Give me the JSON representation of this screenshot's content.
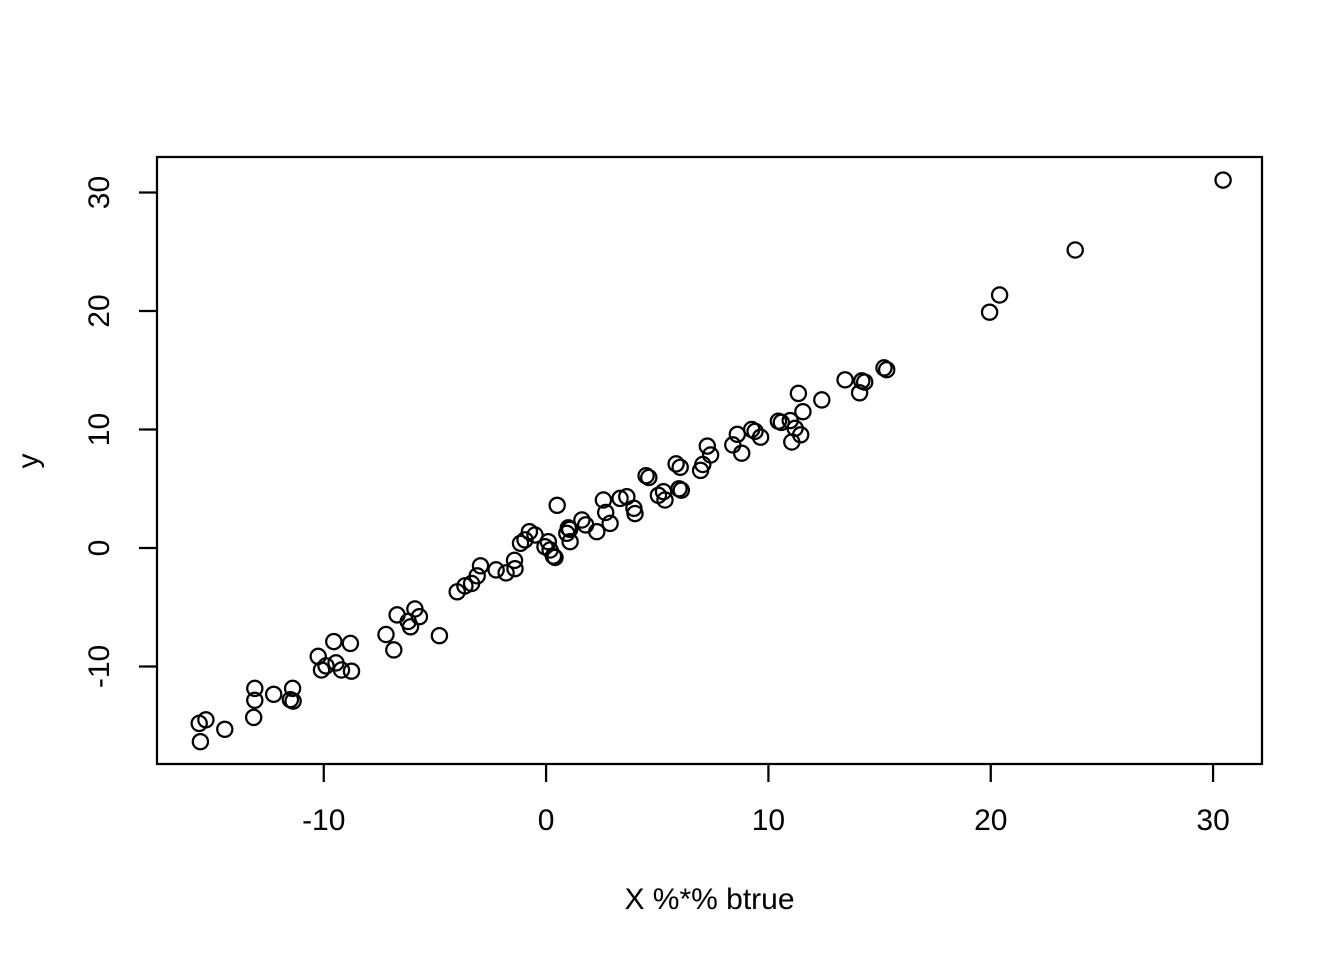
{
  "figure": {
    "background_color": "#ffffff",
    "foreground_color": "#000000"
  },
  "chart_data": {
    "type": "scatter",
    "title": "",
    "xlabel": "X %*% btrue",
    "ylabel": "y",
    "x_ticks": [
      -10,
      0,
      10,
      20,
      30
    ],
    "y_ticks": [
      -10,
      0,
      10,
      20,
      30
    ],
    "xlim": [
      -17.5,
      32.2
    ],
    "ylim": [
      -18.23,
      33.0
    ],
    "grid": "off",
    "legend": "none",
    "frame": "full-box",
    "marker": {
      "shape": "open-circle",
      "color": "#000000",
      "radius_px": 7.6,
      "stroke_px": 2.25
    },
    "n_points": 98,
    "points": [
      [
        -15.6,
        -14.8
      ],
      [
        -15.3,
        -14.5
      ],
      [
        -15.55,
        -16.35
      ],
      [
        -14.45,
        -15.3
      ],
      [
        -13.1,
        -11.85
      ],
      [
        -13.1,
        -12.85
      ],
      [
        -13.15,
        -14.3
      ],
      [
        -12.25,
        -12.35
      ],
      [
        -11.4,
        -11.85
      ],
      [
        -11.5,
        -12.8
      ],
      [
        -11.38,
        -12.92
      ],
      [
        -10.25,
        -9.15
      ],
      [
        -10.1,
        -10.3
      ],
      [
        -9.9,
        -9.95
      ],
      [
        -9.55,
        -7.9
      ],
      [
        -9.45,
        -9.7
      ],
      [
        -9.2,
        -10.3
      ],
      [
        -8.8,
        -8.05
      ],
      [
        -8.75,
        -10.4
      ],
      [
        -7.2,
        -7.3
      ],
      [
        -6.85,
        -8.6
      ],
      [
        -6.7,
        -5.65
      ],
      [
        -6.2,
        -6.2
      ],
      [
        -6.1,
        -6.65
      ],
      [
        -5.9,
        -5.15
      ],
      [
        -5.7,
        -5.8
      ],
      [
        -4.8,
        -7.4
      ],
      [
        -4.0,
        -3.7
      ],
      [
        -3.65,
        -3.2
      ],
      [
        -3.35,
        -3.0
      ],
      [
        -3.1,
        -2.35
      ],
      [
        -2.95,
        -1.5
      ],
      [
        -2.25,
        -1.85
      ],
      [
        -1.8,
        -2.1
      ],
      [
        -1.42,
        -1.05
      ],
      [
        -1.4,
        -1.75
      ],
      [
        -1.15,
        0.4
      ],
      [
        -0.95,
        0.68
      ],
      [
        -0.75,
        1.38
      ],
      [
        -0.5,
        1.1
      ],
      [
        -0.05,
        0.11
      ],
      [
        0.1,
        0.53
      ],
      [
        0.18,
        -0.17
      ],
      [
        0.33,
        -0.68
      ],
      [
        0.4,
        -0.8
      ],
      [
        0.5,
        3.6
      ],
      [
        0.93,
        1.24
      ],
      [
        1.0,
        1.7
      ],
      [
        1.06,
        1.58
      ],
      [
        1.08,
        0.53
      ],
      [
        1.61,
        2.36
      ],
      [
        1.78,
        1.95
      ],
      [
        2.28,
        1.38
      ],
      [
        2.58,
        4.05
      ],
      [
        2.68,
        3.0
      ],
      [
        2.88,
        2.08
      ],
      [
        3.33,
        4.19
      ],
      [
        3.63,
        4.33
      ],
      [
        3.95,
        3.35
      ],
      [
        4.0,
        2.9
      ],
      [
        4.5,
        6.1
      ],
      [
        4.62,
        5.95
      ],
      [
        5.05,
        4.45
      ],
      [
        5.28,
        4.75
      ],
      [
        5.35,
        4.05
      ],
      [
        5.85,
        7.1
      ],
      [
        6.03,
        6.81
      ],
      [
        5.98,
        5.0
      ],
      [
        6.08,
        4.88
      ],
      [
        6.95,
        6.55
      ],
      [
        7.05,
        7.05
      ],
      [
        7.25,
        8.6
      ],
      [
        7.4,
        7.85
      ],
      [
        8.4,
        8.7
      ],
      [
        8.6,
        9.6
      ],
      [
        8.8,
        8.0
      ],
      [
        9.25,
        10.0
      ],
      [
        9.4,
        9.85
      ],
      [
        9.65,
        9.35
      ],
      [
        10.45,
        10.7
      ],
      [
        10.58,
        10.6
      ],
      [
        10.98,
        10.75
      ],
      [
        11.05,
        8.95
      ],
      [
        11.2,
        10.1
      ],
      [
        11.35,
        13.05
      ],
      [
        11.45,
        9.55
      ],
      [
        11.55,
        11.5
      ],
      [
        12.4,
        12.5
      ],
      [
        13.45,
        14.2
      ],
      [
        14.1,
        13.1
      ],
      [
        14.2,
        14.1
      ],
      [
        14.33,
        14.0
      ],
      [
        15.2,
        15.2
      ],
      [
        15.32,
        15.05
      ],
      [
        19.95,
        19.9
      ],
      [
        20.4,
        21.35
      ],
      [
        23.8,
        25.15
      ],
      [
        30.45,
        31.05
      ]
    ]
  }
}
